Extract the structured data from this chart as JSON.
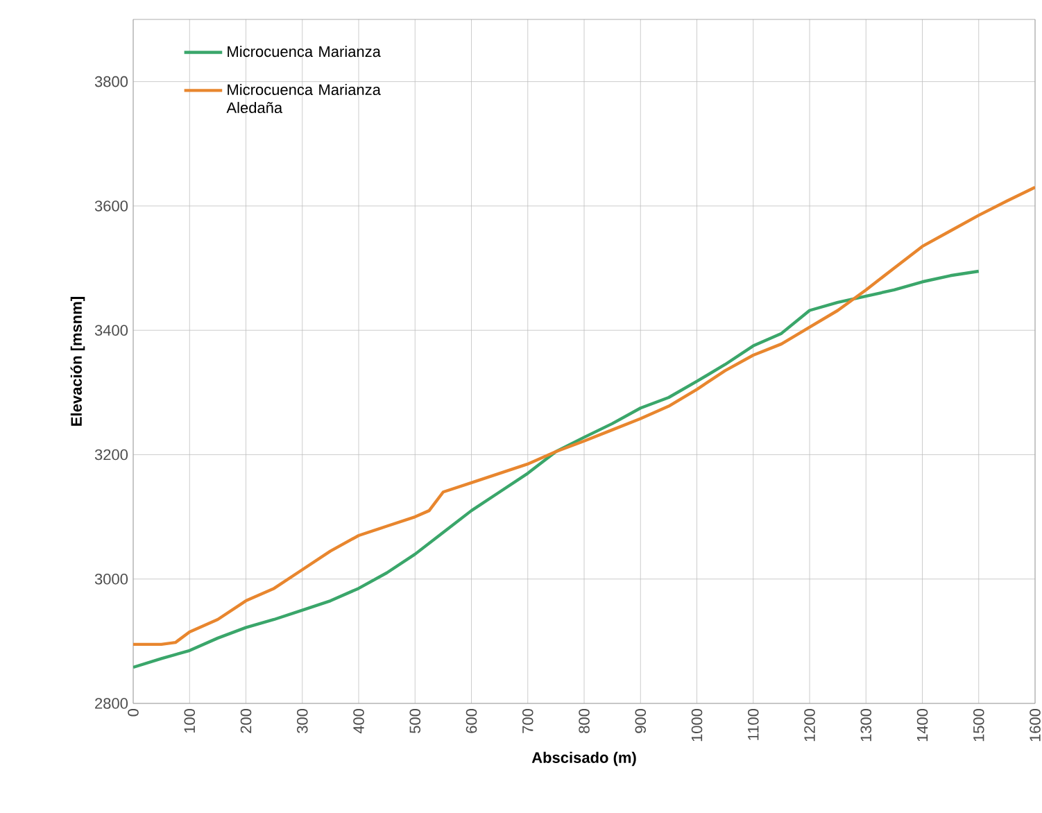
{
  "chart_data": {
    "type": "line",
    "xlabel": "Abscisado (m)",
    "ylabel": "Elevación [msnm]",
    "xlim": [
      0,
      1600
    ],
    "ylim": [
      2800,
      3900
    ],
    "xticks": [
      0,
      100,
      200,
      300,
      400,
      500,
      600,
      700,
      800,
      900,
      1000,
      1100,
      1200,
      1300,
      1400,
      1500,
      1600
    ],
    "yticks": [
      2800,
      3000,
      3200,
      3400,
      3600,
      3800
    ],
    "grid": true,
    "legend": "top left",
    "marker": "none",
    "line_style": "solid",
    "series": [
      {
        "name": "Microcuenca Marianza",
        "color": "#3aa66a",
        "x": [
          0,
          50,
          100,
          150,
          200,
          250,
          300,
          350,
          400,
          450,
          500,
          550,
          600,
          650,
          700,
          750,
          800,
          850,
          900,
          950,
          1000,
          1050,
          1100,
          1150,
          1200,
          1250,
          1300,
          1350,
          1400,
          1450,
          1500
        ],
        "values": [
          2858,
          2872,
          2885,
          2905,
          2922,
          2935,
          2950,
          2965,
          2985,
          3010,
          3040,
          3075,
          3110,
          3140,
          3170,
          3205,
          3228,
          3250,
          3275,
          3292,
          3318,
          3345,
          3375,
          3395,
          3432,
          3445,
          3455,
          3465,
          3478,
          3488,
          3495
        ]
      },
      {
        "name": "Microcuenca Marianza Aledaña",
        "color": "#e8862e",
        "x": [
          0,
          50,
          75,
          100,
          150,
          200,
          250,
          300,
          350,
          400,
          450,
          500,
          525,
          550,
          600,
          650,
          700,
          750,
          800,
          850,
          900,
          950,
          1000,
          1050,
          1100,
          1150,
          1200,
          1250,
          1300,
          1350,
          1400,
          1450,
          1500,
          1550,
          1600
        ],
        "values": [
          2895,
          2895,
          2898,
          2915,
          2935,
          2965,
          2985,
          3015,
          3045,
          3070,
          3085,
          3100,
          3110,
          3140,
          3155,
          3170,
          3185,
          3205,
          3222,
          3240,
          3258,
          3278,
          3305,
          3335,
          3360,
          3378,
          3405,
          3432,
          3465,
          3500,
          3535,
          3560,
          3585,
          3608,
          3630
        ]
      }
    ]
  }
}
